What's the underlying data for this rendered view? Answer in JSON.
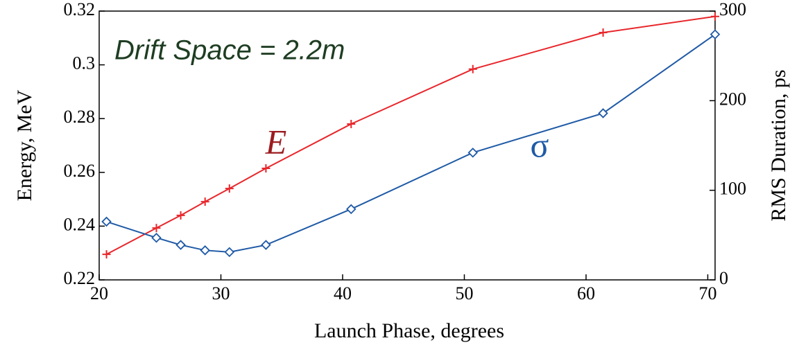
{
  "chart_data": {
    "type": "line",
    "annotation": "Drift Space = 2.2m",
    "x_label": "Launch Phase, degrees",
    "y_label": "Energy, MeV",
    "y2_label": "RMS Duration, ps",
    "x": [
      20.6,
      24.7,
      26.7,
      28.7,
      30.7,
      33.7,
      40.7,
      50.7,
      61.4,
      70.6
    ],
    "series": [
      {
        "name": "E",
        "color": "#e8262b",
        "marker": "plus",
        "values": [
          0.2295,
          0.2393,
          0.244,
          0.2491,
          0.254,
          0.2615,
          0.278,
          0.2984,
          0.312,
          0.318
        ]
      },
      {
        "name": "σ",
        "color": "#1f5aa6",
        "marker": "diamond",
        "axis": "y2",
        "values": [
          65,
          47,
          39,
          33,
          31,
          39,
          79,
          142,
          186,
          274
        ]
      }
    ],
    "xlim": [
      20,
      70.6
    ],
    "xticks": [
      20,
      30,
      40,
      50,
      60,
      70
    ],
    "ylim": [
      0.22,
      0.32
    ],
    "yticks": [
      0.22,
      0.24,
      0.26,
      0.28,
      0.3,
      0.32
    ],
    "y2lim": [
      0,
      300
    ],
    "y2ticks": [
      0,
      100,
      200,
      300
    ],
    "grid": false
  }
}
